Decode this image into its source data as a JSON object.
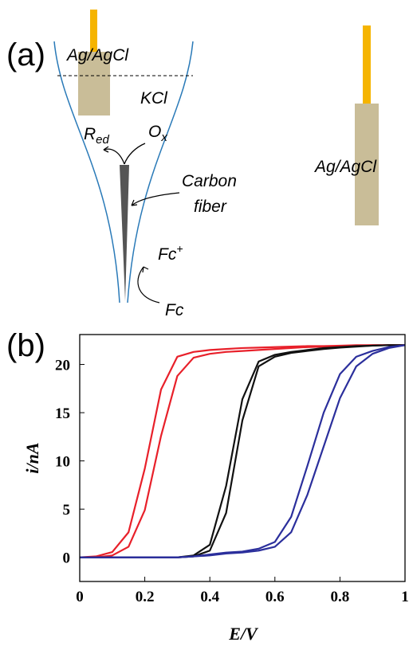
{
  "panel_a": {
    "label": "(a)",
    "ref_in": "Ag/AgCl",
    "electrolyte": "KCl",
    "red": {
      "main": "R",
      "sub": "ed"
    },
    "ox": {
      "main": "O",
      "sub": "x"
    },
    "fiber": [
      "Carbon",
      "fiber"
    ],
    "fc_plus": {
      "main": "Fc",
      "sup": "+"
    },
    "fc": "Fc",
    "ref_out": "Ag/AgCl"
  },
  "panel_b": {
    "label": "(b)"
  },
  "chart_data": {
    "type": "line",
    "xlabel": "E/V",
    "ylabel": "i/nA",
    "x": [
      0,
      0.05,
      0.1,
      0.15,
      0.2,
      0.25,
      0.3,
      0.35,
      0.4,
      0.45,
      0.5,
      0.55,
      0.6,
      0.65,
      0.7,
      0.75,
      0.8,
      0.85,
      0.9,
      0.95,
      1
    ],
    "series": [
      {
        "color": "#e8202a",
        "values": [
          0,
          0.1,
          0.55,
          2.6,
          9.2,
          17.4,
          20.8,
          21.3,
          21.5,
          21.6,
          21.7,
          21.75,
          21.8,
          21.85,
          21.9,
          21.9,
          21.95,
          22,
          22,
          22,
          22
        ]
      },
      {
        "color": "#e8202a",
        "values": [
          0,
          0,
          0.2,
          1.1,
          4.9,
          12.6,
          18.8,
          20.7,
          21.1,
          21.3,
          21.4,
          21.5,
          21.6,
          21.7,
          21.8,
          21.85,
          21.9,
          21.95,
          22,
          22,
          22
        ]
      },
      {
        "color": "#111111",
        "values": [
          0,
          0,
          0,
          0,
          0,
          0,
          0,
          0.2,
          1.3,
          7.4,
          16.4,
          20.3,
          21,
          21.3,
          21.5,
          21.7,
          21.8,
          21.9,
          21.95,
          22,
          22
        ]
      },
      {
        "color": "#111111",
        "values": [
          0,
          0,
          0,
          0,
          0,
          0,
          0,
          0.1,
          0.7,
          4.6,
          14.2,
          19.8,
          20.8,
          21.2,
          21.4,
          21.6,
          21.75,
          21.85,
          21.95,
          22,
          22
        ]
      },
      {
        "color": "#2b2f9c",
        "values": [
          0,
          0,
          0,
          0,
          0,
          0,
          0,
          0.1,
          0.3,
          0.5,
          0.6,
          0.9,
          1.6,
          4.2,
          9.5,
          15,
          19,
          20.8,
          21.4,
          21.8,
          22
        ]
      },
      {
        "color": "#2b2f9c",
        "values": [
          0,
          0,
          0,
          0,
          0,
          0,
          0,
          0.1,
          0.2,
          0.4,
          0.5,
          0.7,
          1.1,
          2.6,
          6.5,
          11.5,
          16.5,
          19.8,
          21.1,
          21.7,
          22
        ]
      }
    ],
    "xlim": [
      0,
      1
    ],
    "ylim": [
      -2.5,
      23.1
    ],
    "xticks": [
      0,
      0.2,
      0.4,
      0.6,
      0.8,
      1
    ],
    "yticks": [
      0,
      5,
      10,
      15,
      20
    ]
  }
}
